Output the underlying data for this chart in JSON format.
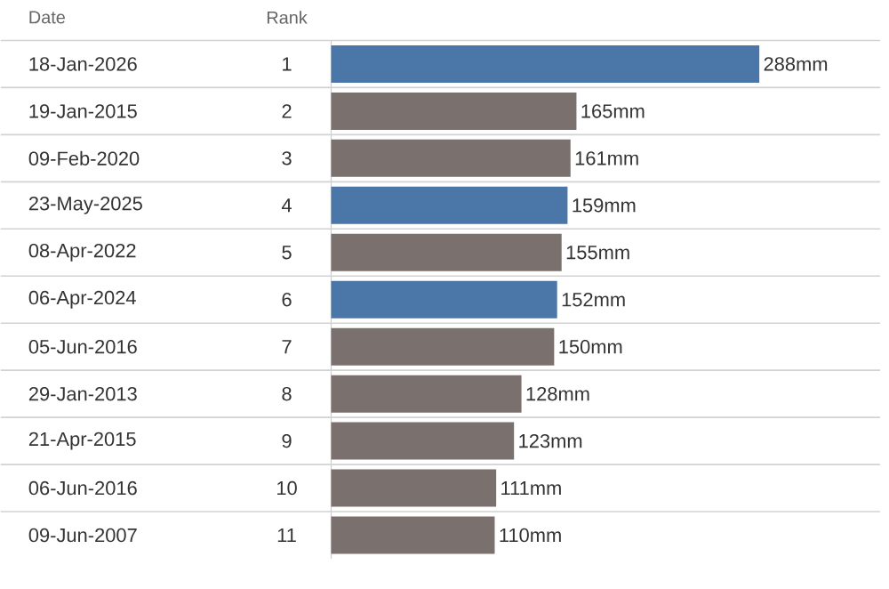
{
  "chart_data": {
    "type": "bar",
    "orientation": "horizontal",
    "ylabel": "Date",
    "categories": [
      "18-Jan-2026",
      "19-Jan-2015",
      "09-Feb-2020",
      "23-May-2025",
      "08-Apr-2022",
      "06-Apr-2024",
      "05-Jun-2016",
      "29-Jan-2013",
      "21-Apr-2015",
      "06-Jun-2016",
      "09-Jun-2007"
    ],
    "values": [
      288,
      165,
      161,
      159,
      155,
      152,
      150,
      128,
      123,
      111,
      110
    ],
    "value_labels": [
      "288mm",
      "165mm",
      "161mm",
      "159mm",
      "155mm",
      "152mm",
      "150mm",
      "128mm",
      "123mm",
      "111mm",
      "110mm"
    ],
    "colors": [
      "#4a76a8",
      "#7a706e",
      "#7a706e",
      "#4a76a8",
      "#7a706e",
      "#4a76a8",
      "#7a706e",
      "#7a706e",
      "#7a706e",
      "#7a706e",
      "#7a706e"
    ],
    "annotations": [
      "Rank",
      "1",
      "2",
      "3",
      "4",
      "5",
      "6",
      "7",
      "8",
      "9",
      "10",
      "11"
    ],
    "grid": "y"
  }
}
